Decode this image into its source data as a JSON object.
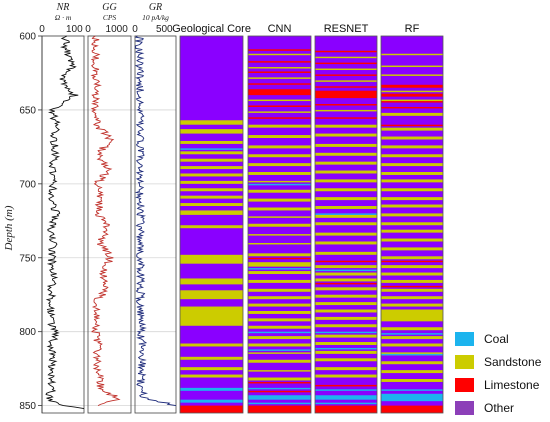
{
  "chart_data": {
    "type": "well-log",
    "y_axis": {
      "label": "Depth (m)",
      "ylim": [
        600,
        855
      ],
      "ticks": [
        600,
        650,
        700,
        750,
        800,
        850
      ],
      "direction": "downward"
    },
    "tracks": [
      {
        "id": "nr",
        "name": "NR",
        "unit": "Ω · m",
        "xlim": [
          0,
          130
        ],
        "ticks": [
          0,
          100
        ],
        "color": "#111111",
        "curve": [
          [
            600,
            70
          ],
          [
            610,
            75
          ],
          [
            620,
            95
          ],
          [
            630,
            60
          ],
          [
            640,
            100
          ],
          [
            650,
            30
          ],
          [
            660,
            45
          ],
          [
            670,
            35
          ],
          [
            680,
            40
          ],
          [
            690,
            30
          ],
          [
            700,
            35
          ],
          [
            710,
            30
          ],
          [
            720,
            45
          ],
          [
            730,
            25
          ],
          [
            740,
            35
          ],
          [
            750,
            30
          ],
          [
            760,
            35
          ],
          [
            770,
            30
          ],
          [
            780,
            28
          ],
          [
            790,
            25
          ],
          [
            800,
            40
          ],
          [
            810,
            30
          ],
          [
            820,
            35
          ],
          [
            830,
            25
          ],
          [
            840,
            30
          ],
          [
            845,
            20
          ],
          [
            850,
            60
          ],
          [
            852,
            130
          ]
        ]
      },
      {
        "id": "gg",
        "name": "GG",
        "unit": "CPS",
        "xlim": [
          0,
          1500
        ],
        "ticks": [
          0,
          1000
        ],
        "color": "#c0302a",
        "curve": [
          [
            600,
            250
          ],
          [
            620,
            260
          ],
          [
            640,
            280
          ],
          [
            660,
            300
          ],
          [
            670,
            800
          ],
          [
            680,
            350
          ],
          [
            690,
            700
          ],
          [
            700,
            300
          ],
          [
            710,
            450
          ],
          [
            720,
            350
          ],
          [
            730,
            700
          ],
          [
            740,
            400
          ],
          [
            750,
            800
          ],
          [
            760,
            500
          ],
          [
            770,
            650
          ],
          [
            780,
            300
          ],
          [
            790,
            350
          ],
          [
            800,
            260
          ],
          [
            810,
            350
          ],
          [
            820,
            300
          ],
          [
            830,
            400
          ],
          [
            840,
            450
          ],
          [
            845,
            1100
          ],
          [
            850,
            350
          ]
        ]
      },
      {
        "id": "gr",
        "name": "GR",
        "unit": "10 pA/kg",
        "xlim": [
          0,
          700
        ],
        "ticks": [
          0,
          500
        ],
        "color": "#1d2a7a",
        "curve": [
          [
            600,
            70
          ],
          [
            620,
            80
          ],
          [
            640,
            90
          ],
          [
            660,
            75
          ],
          [
            680,
            90
          ],
          [
            700,
            80
          ],
          [
            720,
            95
          ],
          [
            740,
            85
          ],
          [
            760,
            90
          ],
          [
            780,
            95
          ],
          [
            800,
            110
          ],
          [
            820,
            130
          ],
          [
            835,
            90
          ],
          [
            845,
            160
          ],
          [
            850,
            700
          ]
        ]
      }
    ],
    "columns": [
      "Geological Core",
      "CNN",
      "RESNET",
      "RF"
    ],
    "classes": [
      {
        "name": "Coal",
        "color": "#1cb4ee"
      },
      {
        "name": "Sandstone",
        "color": "#cccc00"
      },
      {
        "name": "Limestone",
        "color": "#ff0000"
      },
      {
        "name": "Other",
        "color": "#8c3fb8"
      }
    ],
    "background_color": "#8a00ff",
    "layers": [
      {
        "column": "Geological Core",
        "class": "Sandstone",
        "intervals": [
          [
            657,
            660
          ],
          [
            663,
            666
          ],
          [
            671,
            673
          ],
          [
            678,
            680
          ],
          [
            683,
            685
          ],
          [
            688,
            690
          ],
          [
            693,
            695
          ],
          [
            698,
            700
          ],
          [
            703,
            705
          ],
          [
            708,
            710
          ],
          [
            713,
            715
          ],
          [
            718,
            721
          ],
          [
            728,
            730
          ],
          [
            748,
            754
          ],
          [
            764,
            768
          ],
          [
            772,
            778
          ],
          [
            783,
            796
          ],
          [
            808,
            810
          ],
          [
            817,
            819
          ],
          [
            824,
            826
          ],
          [
            829,
            831
          ]
        ]
      },
      {
        "column": "Geological Core",
        "class": "Coal",
        "intervals": [
          [
            676,
            677
          ],
          [
            838,
            840
          ],
          [
            846,
            848
          ]
        ]
      },
      {
        "column": "Geological Core",
        "class": "Limestone",
        "intervals": [
          [
            850,
            855
          ]
        ]
      },
      {
        "column": "CNN",
        "class": "Limestone",
        "intervals": [
          [
            609,
            610
          ],
          [
            617,
            618
          ],
          [
            624,
            625
          ],
          [
            632,
            633
          ],
          [
            636,
            640
          ],
          [
            647,
            648
          ],
          [
            655,
            656
          ],
          [
            750,
            751
          ],
          [
            834,
            835
          ],
          [
            840,
            841
          ],
          [
            850,
            855
          ]
        ]
      },
      {
        "column": "CNN",
        "class": "Sandstone",
        "intervals": [
          [
            612,
            613
          ],
          [
            621,
            622
          ],
          [
            628,
            629
          ],
          [
            643,
            644
          ],
          [
            651,
            652
          ],
          [
            660,
            662
          ],
          [
            667,
            669
          ],
          [
            674,
            676
          ],
          [
            680,
            682
          ],
          [
            686,
            688
          ],
          [
            692,
            694
          ],
          [
            698,
            699
          ],
          [
            704,
            706
          ],
          [
            710,
            712
          ],
          [
            716,
            718
          ],
          [
            722,
            723
          ],
          [
            727,
            729
          ],
          [
            734,
            735
          ],
          [
            740,
            741
          ],
          [
            747,
            749
          ],
          [
            753,
            756
          ],
          [
            759,
            761
          ],
          [
            765,
            767
          ],
          [
            771,
            773
          ],
          [
            776,
            778
          ],
          [
            781,
            783
          ],
          [
            786,
            788
          ],
          [
            791,
            793
          ],
          [
            796,
            798
          ],
          [
            803,
            805
          ],
          [
            808,
            810
          ],
          [
            814,
            815
          ],
          [
            819,
            821
          ],
          [
            826,
            827
          ],
          [
            831,
            833
          ]
        ]
      },
      {
        "column": "CNN",
        "class": "Coal",
        "intervals": [
          [
            700,
            701
          ],
          [
            757,
            758
          ],
          [
            800,
            801
          ],
          [
            812,
            813
          ],
          [
            838,
            839
          ],
          [
            843,
            846
          ],
          [
            848,
            849
          ]
        ]
      },
      {
        "column": "RESNET",
        "class": "Limestone",
        "intervals": [
          [
            610,
            611
          ],
          [
            618,
            619
          ],
          [
            626,
            627
          ],
          [
            634,
            635
          ],
          [
            637,
            642
          ],
          [
            646,
            647
          ],
          [
            655,
            656
          ],
          [
            752,
            753
          ],
          [
            767,
            768
          ],
          [
            836,
            837
          ],
          [
            850,
            855
          ]
        ]
      },
      {
        "column": "RESNET",
        "class": "Sandstone",
        "intervals": [
          [
            614,
            615
          ],
          [
            622,
            623
          ],
          [
            630,
            631
          ],
          [
            650,
            651
          ],
          [
            660,
            662
          ],
          [
            666,
            668
          ],
          [
            673,
            675
          ],
          [
            679,
            681
          ],
          [
            685,
            687
          ],
          [
            691,
            693
          ],
          [
            697,
            699
          ],
          [
            703,
            705
          ],
          [
            709,
            711
          ],
          [
            715,
            717
          ],
          [
            721,
            723
          ],
          [
            726,
            728
          ],
          [
            733,
            735
          ],
          [
            739,
            741
          ],
          [
            746,
            748
          ],
          [
            755,
            757
          ],
          [
            760,
            762
          ],
          [
            764,
            766
          ],
          [
            770,
            772
          ],
          [
            775,
            777
          ],
          [
            780,
            782
          ],
          [
            785,
            787
          ],
          [
            790,
            792
          ],
          [
            795,
            797
          ],
          [
            802,
            804
          ],
          [
            807,
            809
          ],
          [
            813,
            815
          ],
          [
            818,
            820
          ],
          [
            824,
            826
          ],
          [
            829,
            831
          ]
        ]
      },
      {
        "column": "RESNET",
        "class": "Coal",
        "intervals": [
          [
            720,
            721
          ],
          [
            758,
            759
          ],
          [
            800,
            801
          ],
          [
            811,
            812
          ],
          [
            839,
            840
          ],
          [
            843,
            846
          ],
          [
            848,
            849
          ]
        ]
      },
      {
        "column": "RF",
        "class": "Limestone",
        "intervals": [
          [
            633,
            635
          ],
          [
            639,
            641
          ],
          [
            644,
            645
          ],
          [
            648,
            649
          ],
          [
            660,
            661
          ],
          [
            752,
            753
          ],
          [
            769,
            770
          ],
          [
            850,
            855
          ]
        ]
      },
      {
        "column": "RF",
        "class": "Sandstone",
        "intervals": [
          [
            612,
            613
          ],
          [
            620,
            621
          ],
          [
            626,
            627
          ],
          [
            637,
            638
          ],
          [
            643,
            644
          ],
          [
            652,
            654
          ],
          [
            662,
            664
          ],
          [
            668,
            670
          ],
          [
            674,
            676
          ],
          [
            680,
            682
          ],
          [
            686,
            688
          ],
          [
            692,
            694
          ],
          [
            697,
            699
          ],
          [
            703,
            705
          ],
          [
            709,
            711
          ],
          [
            714,
            716
          ],
          [
            720,
            722
          ],
          [
            726,
            728
          ],
          [
            731,
            733
          ],
          [
            737,
            739
          ],
          [
            743,
            745
          ],
          [
            749,
            751
          ],
          [
            755,
            757
          ],
          [
            760,
            762
          ],
          [
            765,
            767
          ],
          [
            771,
            773
          ],
          [
            776,
            778
          ],
          [
            781,
            783
          ],
          [
            785,
            793
          ],
          [
            797,
            799
          ],
          [
            803,
            805
          ],
          [
            808,
            810
          ],
          [
            814,
            816
          ],
          [
            820,
            822
          ],
          [
            826,
            828
          ],
          [
            832,
            834
          ]
        ]
      },
      {
        "column": "RF",
        "class": "Coal",
        "intervals": [
          [
            801,
            802
          ],
          [
            815,
            816
          ],
          [
            839,
            840
          ],
          [
            842,
            847
          ]
        ]
      }
    ]
  }
}
